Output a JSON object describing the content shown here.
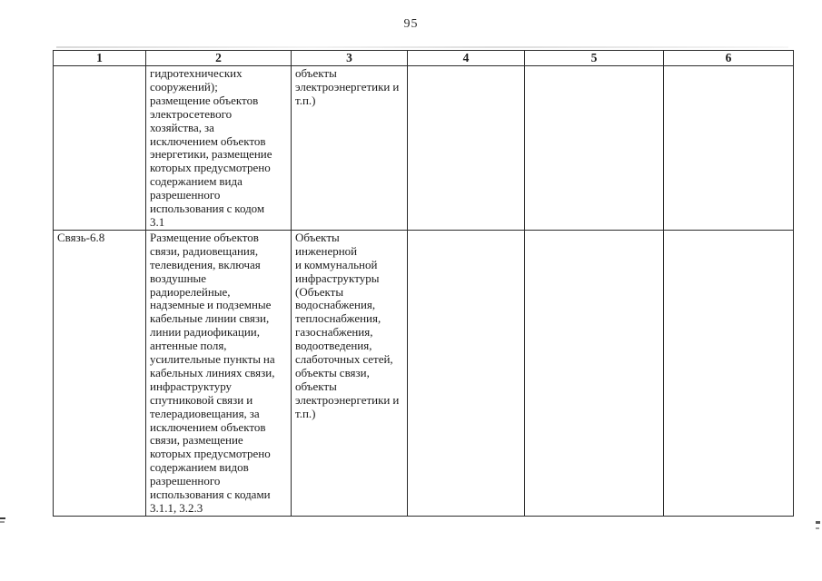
{
  "page": {
    "number": "95"
  },
  "colors": {
    "text": "#1b1b1b",
    "border": "#2b2b2b",
    "background": "#ffffff"
  },
  "table": {
    "headers": [
      "1",
      "2",
      "3",
      "4",
      "5",
      "6"
    ],
    "rows": [
      {
        "cells": [
          "",
          "гидротехнических\nсооружений);\nразмещение объектов\nэлектросетевого\nхозяйства, за\nисключением объектов\nэнергетики, размещение\nкоторых предусмотрено\nсодержанием вида\nразрешенного\nиспользования с кодом\n3.1",
          "объекты\nэлектроэнергетики и\nт.п.)",
          "",
          "",
          ""
        ]
      },
      {
        "cells": [
          "Связь-6.8",
          "Размещение объектов\nсвязи, радиовещания,\nтелевидения, включая\nвоздушные\nрадиорелейные,\nнадземные и подземные\nкабельные линии связи,\nлинии радиофикации,\nантенные поля,\nусилительные пункты на\nкабельных линиях связи,\nинфраструктуру\nспутниковой связи и\nтелерадиовещания, за\nисключением объектов\nсвязи, размещение\nкоторых предусмотрено\nсодержанием видов\nразрешенного\nиспользования с кодами\n3.1.1, 3.2.3",
          "Объекты инженерной\nи коммунальной\nинфраструктуры\n(Объекты\nводоснабжения,\nтеплоснабжения,\nгазоснабжения,\nводоотведения,\nслаботочных сетей,\nобъекты связи,\nобъекты\nэлектроэнергетики и\nт.п.)",
          "",
          "",
          ""
        ]
      }
    ]
  }
}
